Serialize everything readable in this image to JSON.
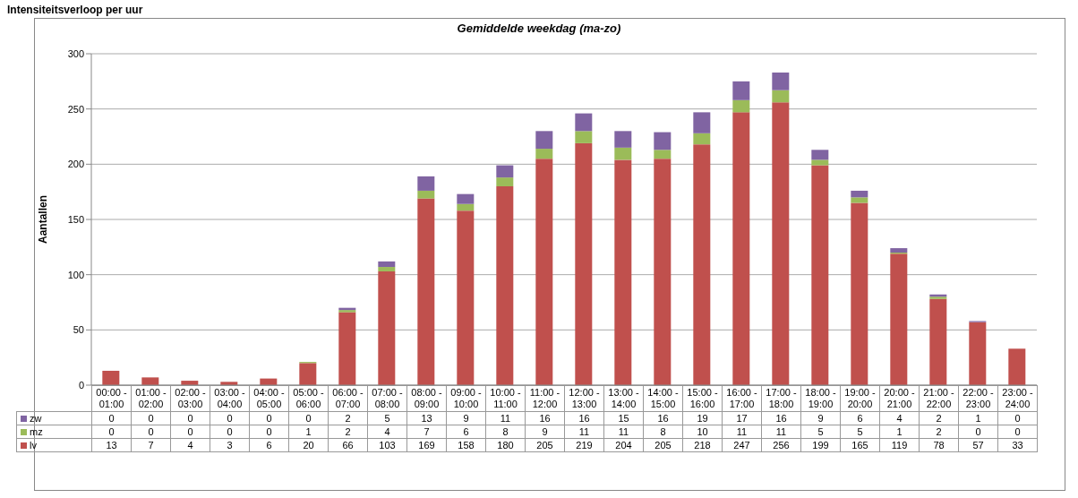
{
  "chart_data": {
    "type": "bar",
    "title": "Gemiddelde weekdag (ma-zo)",
    "ylabel": "Aantallen",
    "annotations": [
      "Intensiteitsverloop per uur"
    ],
    "categories": [
      "00:00 - 01:00",
      "01:00 - 02:00",
      "02:00 - 03:00",
      "03:00 - 04:00",
      "04:00 - 05:00",
      "05:00 - 06:00",
      "06:00 - 07:00",
      "07:00 - 08:00",
      "08:00 - 09:00",
      "09:00 - 10:00",
      "10:00 - 11:00",
      "11:00 - 12:00",
      "12:00 - 13:00",
      "13:00 - 14:00",
      "14:00 - 15:00",
      "15:00 - 16:00",
      "16:00 - 17:00",
      "17:00 - 18:00",
      "18:00 - 19:00",
      "19:00 - 20:00",
      "20:00 - 21:00",
      "21:00 - 22:00",
      "22:00 - 23:00",
      "23:00 - 24:00"
    ],
    "series": [
      {
        "name": "lv",
        "color": "#c0504d",
        "values": [
          13,
          7,
          4,
          3,
          6,
          20,
          66,
          103,
          169,
          158,
          180,
          205,
          219,
          204,
          205,
          218,
          247,
          256,
          199,
          165,
          119,
          78,
          57,
          33
        ]
      },
      {
        "name": "mz",
        "color": "#9bbb59",
        "values": [
          0,
          0,
          0,
          0,
          0,
          1,
          2,
          4,
          7,
          6,
          8,
          9,
          11,
          11,
          8,
          10,
          11,
          11,
          5,
          5,
          1,
          2,
          0,
          0
        ]
      },
      {
        "name": "zw",
        "color": "#8064a2",
        "values": [
          0,
          0,
          0,
          0,
          0,
          0,
          2,
          5,
          13,
          9,
          11,
          16,
          16,
          15,
          16,
          19,
          17,
          16,
          9,
          6,
          4,
          2,
          1,
          0
        ]
      }
    ],
    "stacked": true,
    "ylim": [
      0,
      300
    ],
    "yticks": [
      0,
      50,
      100,
      150,
      200,
      250,
      300
    ],
    "grid": "y",
    "legend": "bottom",
    "data_labels": true
  }
}
